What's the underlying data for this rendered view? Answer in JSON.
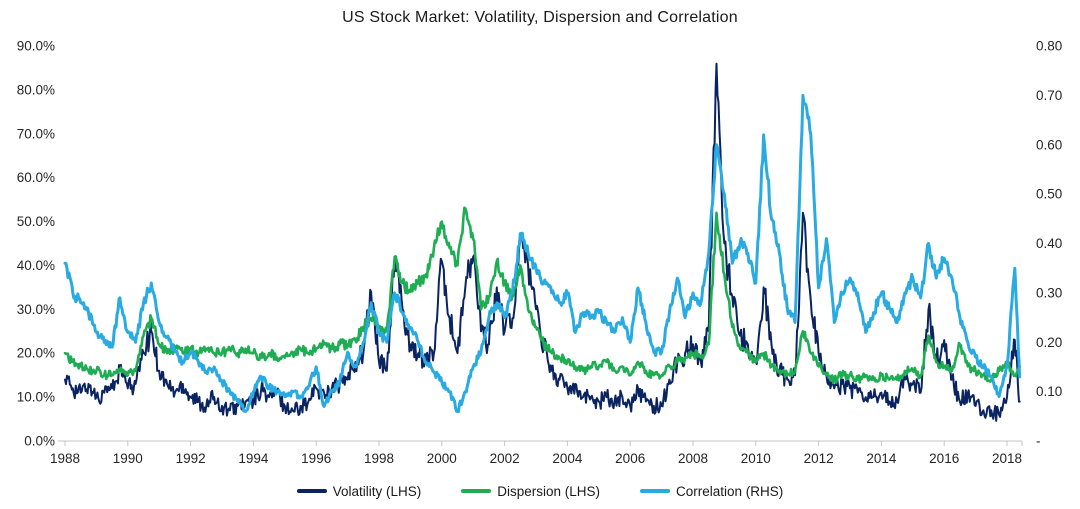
{
  "title": "US Stock Market: Volatility, Dispersion and Correlation",
  "legend": [
    {
      "label": "Volatility (LHS)",
      "color": "#0A2361"
    },
    {
      "label": "Dispersion (LHS)",
      "color": "#1FAD54"
    },
    {
      "label": "Correlation (RHS)",
      "color": "#29ABE2"
    }
  ],
  "chart_data": {
    "type": "line",
    "title": "US Stock Market: Volatility, Dispersion and Correlation",
    "background": "#FFFFFF",
    "grid": "none",
    "legend_position": "bottom-center",
    "x_axis": {
      "tick_labels": [
        "1988",
        "1990",
        "1992",
        "1994",
        "1996",
        "1998",
        "2000",
        "2002",
        "2004",
        "2006",
        "2008",
        "2010",
        "2012",
        "2014",
        "2016",
        "2018"
      ],
      "tick_values": [
        1988,
        1990,
        1992,
        1994,
        1996,
        1998,
        2000,
        2002,
        2004,
        2006,
        2008,
        2010,
        2012,
        2014,
        2016,
        2018
      ],
      "min": 1988,
      "max": 2018.4
    },
    "left_axis": {
      "tick_labels": [
        "0.0%",
        "10.0%",
        "20.0%",
        "30.0%",
        "40.0%",
        "50.0%",
        "60.0%",
        "70.0%",
        "80.0%",
        "90.0%"
      ],
      "min": 0,
      "max": 90,
      "units": "percent",
      "series": [
        "Volatility (LHS)",
        "Dispersion (LHS)"
      ]
    },
    "right_axis": {
      "tick_labels": [
        "-",
        "0.10",
        "0.20",
        "0.30",
        "0.40",
        "0.50",
        "0.60",
        "0.70",
        "0.80"
      ],
      "min": 0,
      "max": 0.8,
      "series": [
        "Correlation (RHS)"
      ]
    },
    "sampling": {
      "x_start": 1988,
      "x_step": 0.25,
      "x_last": 2018.4
    },
    "series": [
      {
        "name": "Volatility (LHS)",
        "axis": "left",
        "color": "#0A2361",
        "stroke_width": 2,
        "jitter_base": 1.4,
        "jitter_scale": 0.06,
        "values": [
          14,
          12,
          11,
          13,
          10,
          11,
          12,
          16,
          12,
          13,
          20,
          25,
          16,
          13,
          11,
          13,
          10,
          9,
          8,
          10,
          8,
          7,
          8,
          9,
          9,
          12,
          10,
          11,
          8,
          7,
          8,
          9,
          12,
          11,
          12,
          13,
          14,
          18,
          20,
          34,
          18,
          16,
          42,
          30,
          22,
          20,
          18,
          20,
          41,
          28,
          20,
          35,
          42,
          25,
          22,
          35,
          25,
          28,
          46,
          40,
          30,
          22,
          16,
          14,
          12,
          13,
          10,
          10,
          9,
          10,
          9,
          10,
          8,
          12,
          9,
          8,
          8,
          14,
          18,
          20,
          22,
          18,
          25,
          86,
          45,
          33,
          24,
          22,
          18,
          35,
          22,
          16,
          14,
          15,
          52,
          32,
          20,
          15,
          12,
          13,
          12,
          11,
          10,
          10,
          11,
          9,
          9,
          14,
          13,
          11,
          30,
          18,
          23,
          14,
          9,
          11,
          8,
          7,
          7,
          6,
          10,
          23,
          9
        ]
      },
      {
        "name": "Dispersion (LHS)",
        "axis": "left",
        "color": "#1FAD54",
        "stroke_width": 2.6,
        "jitter_base": 0.6,
        "jitter_scale": 0.025,
        "values": [
          20,
          18,
          17,
          16,
          16,
          15,
          15,
          16,
          15,
          16,
          24,
          28,
          22,
          20,
          21,
          20,
          21,
          20,
          21,
          20,
          20,
          21,
          20,
          21,
          20,
          19,
          20,
          19,
          19,
          20,
          21,
          20,
          21,
          22,
          21,
          22,
          22,
          23,
          26,
          28,
          26,
          25,
          42,
          36,
          34,
          36,
          38,
          44,
          50,
          44,
          40,
          53,
          46,
          30,
          33,
          41,
          36,
          33,
          40,
          30,
          26,
          22,
          20,
          19,
          18,
          17,
          16,
          17,
          17,
          18,
          16,
          17,
          15,
          18,
          16,
          15,
          15,
          17,
          18,
          19,
          20,
          19,
          22,
          52,
          38,
          26,
          21,
          20,
          18,
          20,
          17,
          16,
          15,
          16,
          25,
          20,
          17,
          15,
          14,
          15,
          15,
          14,
          15,
          14,
          15,
          14,
          14,
          16,
          16,
          15,
          24,
          18,
          17,
          16,
          22,
          17,
          16,
          15,
          14,
          16,
          18,
          15,
          17
        ]
      },
      {
        "name": "Correlation (RHS)",
        "axis": "right",
        "color": "#29ABE2",
        "stroke_width": 3,
        "jitter_base": 0.005,
        "jitter_scale": 0.02,
        "values": [
          0.36,
          0.3,
          0.28,
          0.26,
          0.22,
          0.2,
          0.19,
          0.29,
          0.22,
          0.2,
          0.28,
          0.32,
          0.24,
          0.21,
          0.18,
          0.16,
          0.18,
          0.16,
          0.14,
          0.15,
          0.12,
          0.1,
          0.08,
          0.06,
          0.1,
          0.13,
          0.11,
          0.1,
          0.09,
          0.1,
          0.09,
          0.11,
          0.15,
          0.07,
          0.1,
          0.12,
          0.18,
          0.15,
          0.2,
          0.28,
          0.22,
          0.2,
          0.3,
          0.26,
          0.23,
          0.2,
          0.16,
          0.14,
          0.12,
          0.1,
          0.06,
          0.1,
          0.15,
          0.18,
          0.25,
          0.28,
          0.25,
          0.3,
          0.42,
          0.38,
          0.35,
          0.32,
          0.3,
          0.28,
          0.3,
          0.22,
          0.26,
          0.25,
          0.26,
          0.24,
          0.22,
          0.25,
          0.2,
          0.31,
          0.24,
          0.18,
          0.18,
          0.26,
          0.33,
          0.25,
          0.3,
          0.28,
          0.38,
          0.6,
          0.5,
          0.36,
          0.4,
          0.38,
          0.32,
          0.62,
          0.45,
          0.38,
          0.27,
          0.24,
          0.7,
          0.62,
          0.31,
          0.41,
          0.24,
          0.3,
          0.33,
          0.3,
          0.22,
          0.26,
          0.3,
          0.27,
          0.24,
          0.3,
          0.33,
          0.29,
          0.4,
          0.33,
          0.37,
          0.33,
          0.25,
          0.2,
          0.17,
          0.15,
          0.13,
          0.09,
          0.15,
          0.35,
          0.13
        ]
      }
    ]
  }
}
